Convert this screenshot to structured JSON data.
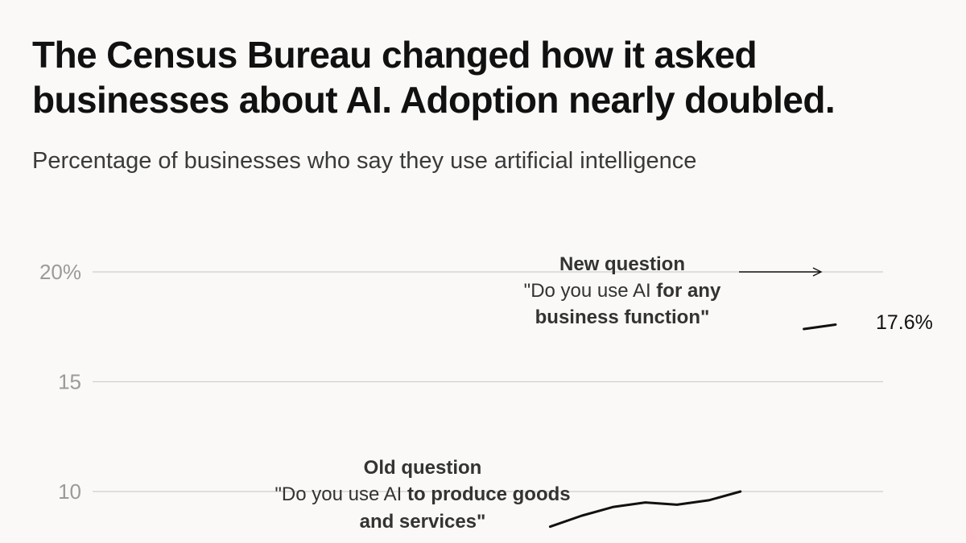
{
  "title_line1": "The Census Bureau changed how it asked",
  "title_line2": "businesses about AI. Adoption nearly doubled.",
  "subtitle": "Percentage of businesses who say they use artificial intelligence",
  "colors": {
    "background": "#faf9f7",
    "line": "#111111",
    "grid": "#cfcfcf",
    "tick": "#9a9a9a",
    "annotation": "#333333"
  },
  "chart_data": {
    "type": "line",
    "title": "The Census Bureau changed how it asked businesses about AI. Adoption nearly doubled.",
    "subtitle": "Percentage of businesses who say they use artificial intelligence",
    "xlabel": "",
    "ylabel": "",
    "ylim": [
      8.4,
      20
    ],
    "y_ticks": [
      {
        "value": 20,
        "label": "20%"
      },
      {
        "value": 15,
        "label": "15"
      },
      {
        "value": 10,
        "label": "10"
      }
    ],
    "grid": true,
    "series": [
      {
        "points": [
          {
            "x": 1,
            "y": 8.4
          },
          {
            "x": 2,
            "y": 8.9
          },
          {
            "x": 3,
            "y": 9.3
          },
          {
            "x": 4,
            "y": 9.5
          },
          {
            "x": 5,
            "y": 9.4
          },
          {
            "x": 6,
            "y": 9.6
          },
          {
            "x": 7,
            "y": 10.0
          }
        ]
      },
      {
        "points": [
          {
            "x": 9,
            "y": 17.4
          },
          {
            "x": 10,
            "y": 17.6
          }
        ],
        "end_label": "17.6%"
      }
    ],
    "annotations": {
      "new": {
        "heading": "New question",
        "line1_plain": "\"Do you use AI ",
        "line1_bold": "for any",
        "line2": "business function\""
      },
      "old": {
        "heading": "Old question",
        "line1_plain": "\"Do you use AI ",
        "line1_bold": "to produce goods",
        "line2": "and services\""
      }
    }
  }
}
